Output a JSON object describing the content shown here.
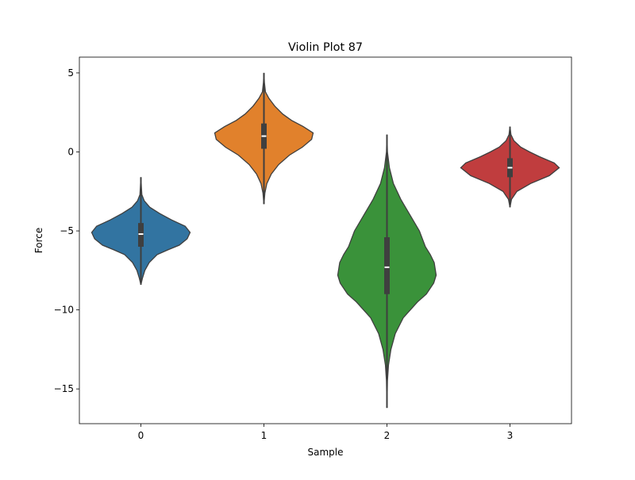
{
  "chart_data": {
    "type": "violin",
    "title": "Violin Plot 87",
    "xlabel": "Sample",
    "ylabel": "Force",
    "ylim": [
      -17.2,
      6.0
    ],
    "yticks": [
      5,
      0,
      -5,
      -10,
      -15
    ],
    "ytick_labels": [
      "5",
      "0",
      "−5",
      "−10",
      "−15"
    ],
    "grid": false,
    "categories": [
      "0",
      "1",
      "2",
      "3"
    ],
    "series": [
      {
        "category": "0",
        "color": "#3274a1",
        "min": -8.4,
        "max": -1.6,
        "q1": -6.0,
        "median": -5.2,
        "q3": -4.5,
        "density": [
          [
            -8.4,
            0.0
          ],
          [
            -8.0,
            0.03
          ],
          [
            -7.5,
            0.08
          ],
          [
            -7.0,
            0.17
          ],
          [
            -6.5,
            0.33
          ],
          [
            -6.2,
            0.55
          ],
          [
            -5.9,
            0.78
          ],
          [
            -5.5,
            0.94
          ],
          [
            -5.1,
            1.0
          ],
          [
            -4.7,
            0.9
          ],
          [
            -4.3,
            0.62
          ],
          [
            -3.9,
            0.38
          ],
          [
            -3.5,
            0.18
          ],
          [
            -3.1,
            0.07
          ],
          [
            -2.7,
            0.02
          ],
          [
            -2.2,
            0.01
          ],
          [
            -1.6,
            0.0
          ]
        ]
      },
      {
        "category": "1",
        "color": "#e1812c",
        "min": -3.3,
        "max": 5.0,
        "q1": 0.2,
        "median": 1.0,
        "q3": 1.8,
        "density": [
          [
            -3.3,
            0.0
          ],
          [
            -2.6,
            0.02
          ],
          [
            -2.0,
            0.06
          ],
          [
            -1.4,
            0.15
          ],
          [
            -0.8,
            0.3
          ],
          [
            -0.2,
            0.52
          ],
          [
            0.3,
            0.78
          ],
          [
            0.8,
            0.97
          ],
          [
            1.2,
            1.0
          ],
          [
            1.6,
            0.8
          ],
          [
            2.0,
            0.56
          ],
          [
            2.4,
            0.38
          ],
          [
            2.9,
            0.22
          ],
          [
            3.4,
            0.1
          ],
          [
            3.8,
            0.03
          ],
          [
            4.4,
            0.01
          ],
          [
            5.0,
            0.0
          ]
        ]
      },
      {
        "category": "2",
        "color": "#3a923a",
        "min": -16.2,
        "max": 1.1,
        "q1": -9.0,
        "median": -7.3,
        "q3": -5.4,
        "density": [
          [
            -16.2,
            0.0
          ],
          [
            -14.5,
            0.01
          ],
          [
            -13.5,
            0.03
          ],
          [
            -12.5,
            0.08
          ],
          [
            -11.5,
            0.17
          ],
          [
            -10.5,
            0.33
          ],
          [
            -9.5,
            0.62
          ],
          [
            -9.0,
            0.8
          ],
          [
            -8.3,
            0.95
          ],
          [
            -7.8,
            1.0
          ],
          [
            -7.0,
            0.96
          ],
          [
            -6.5,
            0.88
          ],
          [
            -6.0,
            0.78
          ],
          [
            -5.0,
            0.66
          ],
          [
            -4.0,
            0.47
          ],
          [
            -3.0,
            0.28
          ],
          [
            -2.0,
            0.13
          ],
          [
            -1.0,
            0.05
          ],
          [
            0.0,
            0.01
          ],
          [
            1.1,
            0.0
          ]
        ]
      },
      {
        "category": "3",
        "color": "#c03d3e",
        "min": -3.5,
        "max": 1.6,
        "q1": -1.6,
        "median": -1.0,
        "q3": -0.4,
        "density": [
          [
            -3.5,
            0.0
          ],
          [
            -3.0,
            0.03
          ],
          [
            -2.5,
            0.14
          ],
          [
            -2.0,
            0.42
          ],
          [
            -1.5,
            0.8
          ],
          [
            -1.0,
            1.0
          ],
          [
            -0.7,
            0.9
          ],
          [
            -0.3,
            0.6
          ],
          [
            0.0,
            0.4
          ],
          [
            0.3,
            0.22
          ],
          [
            0.7,
            0.08
          ],
          [
            1.1,
            0.02
          ],
          [
            1.6,
            0.0
          ]
        ]
      }
    ]
  }
}
